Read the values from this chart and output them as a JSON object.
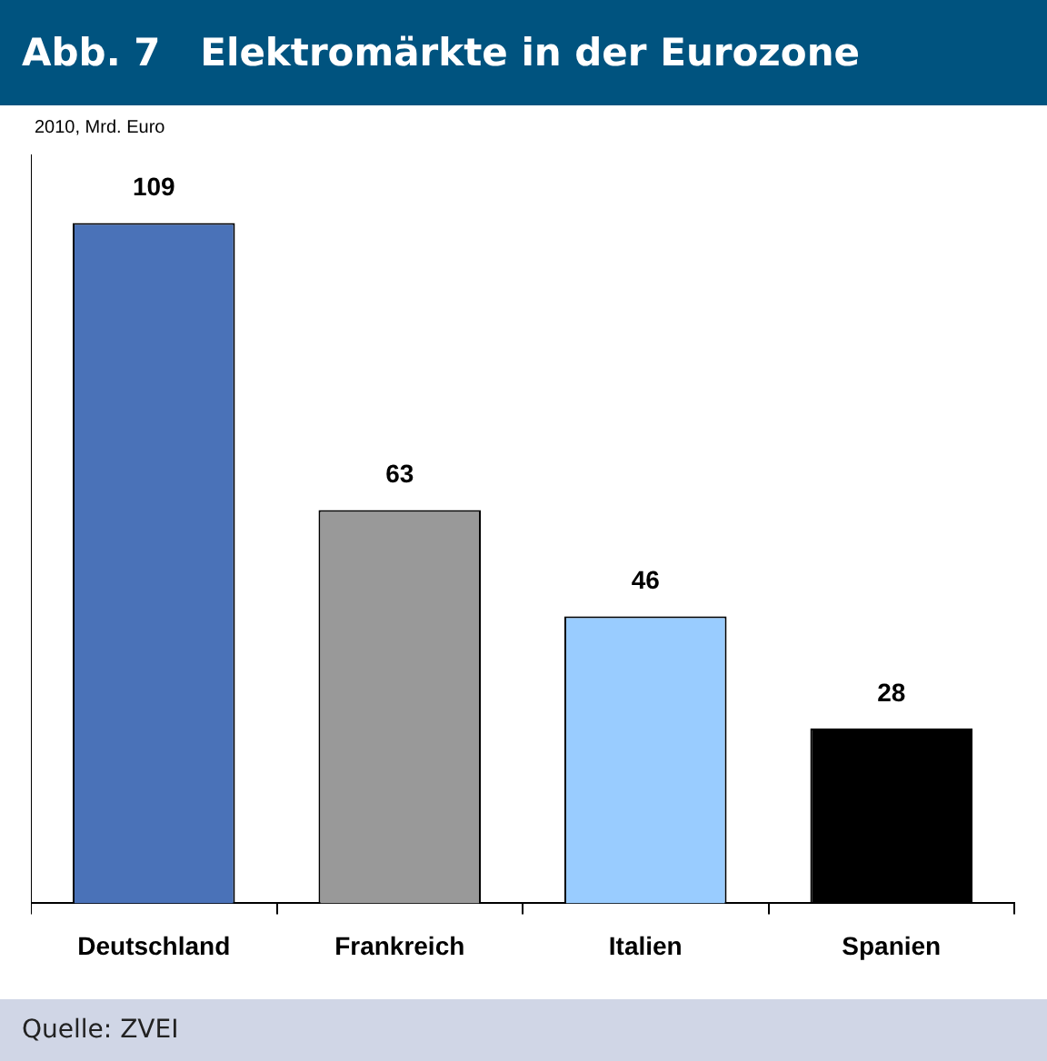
{
  "chart_data": {
    "type": "bar",
    "title": "Abb. 7   Elektromärkte in der Eurozone",
    "subtitle": "2010, Mrd. Euro",
    "categories": [
      "Deutschland",
      "Frankreich",
      "Italien",
      "Spanien"
    ],
    "values": [
      109,
      63,
      46,
      28
    ],
    "colors": [
      "#4a72b8",
      "#999999",
      "#99ccff",
      "#000000"
    ],
    "data_labels": true,
    "grid": false,
    "legend": false,
    "annotations": [
      "Quelle: ZVEI"
    ]
  }
}
